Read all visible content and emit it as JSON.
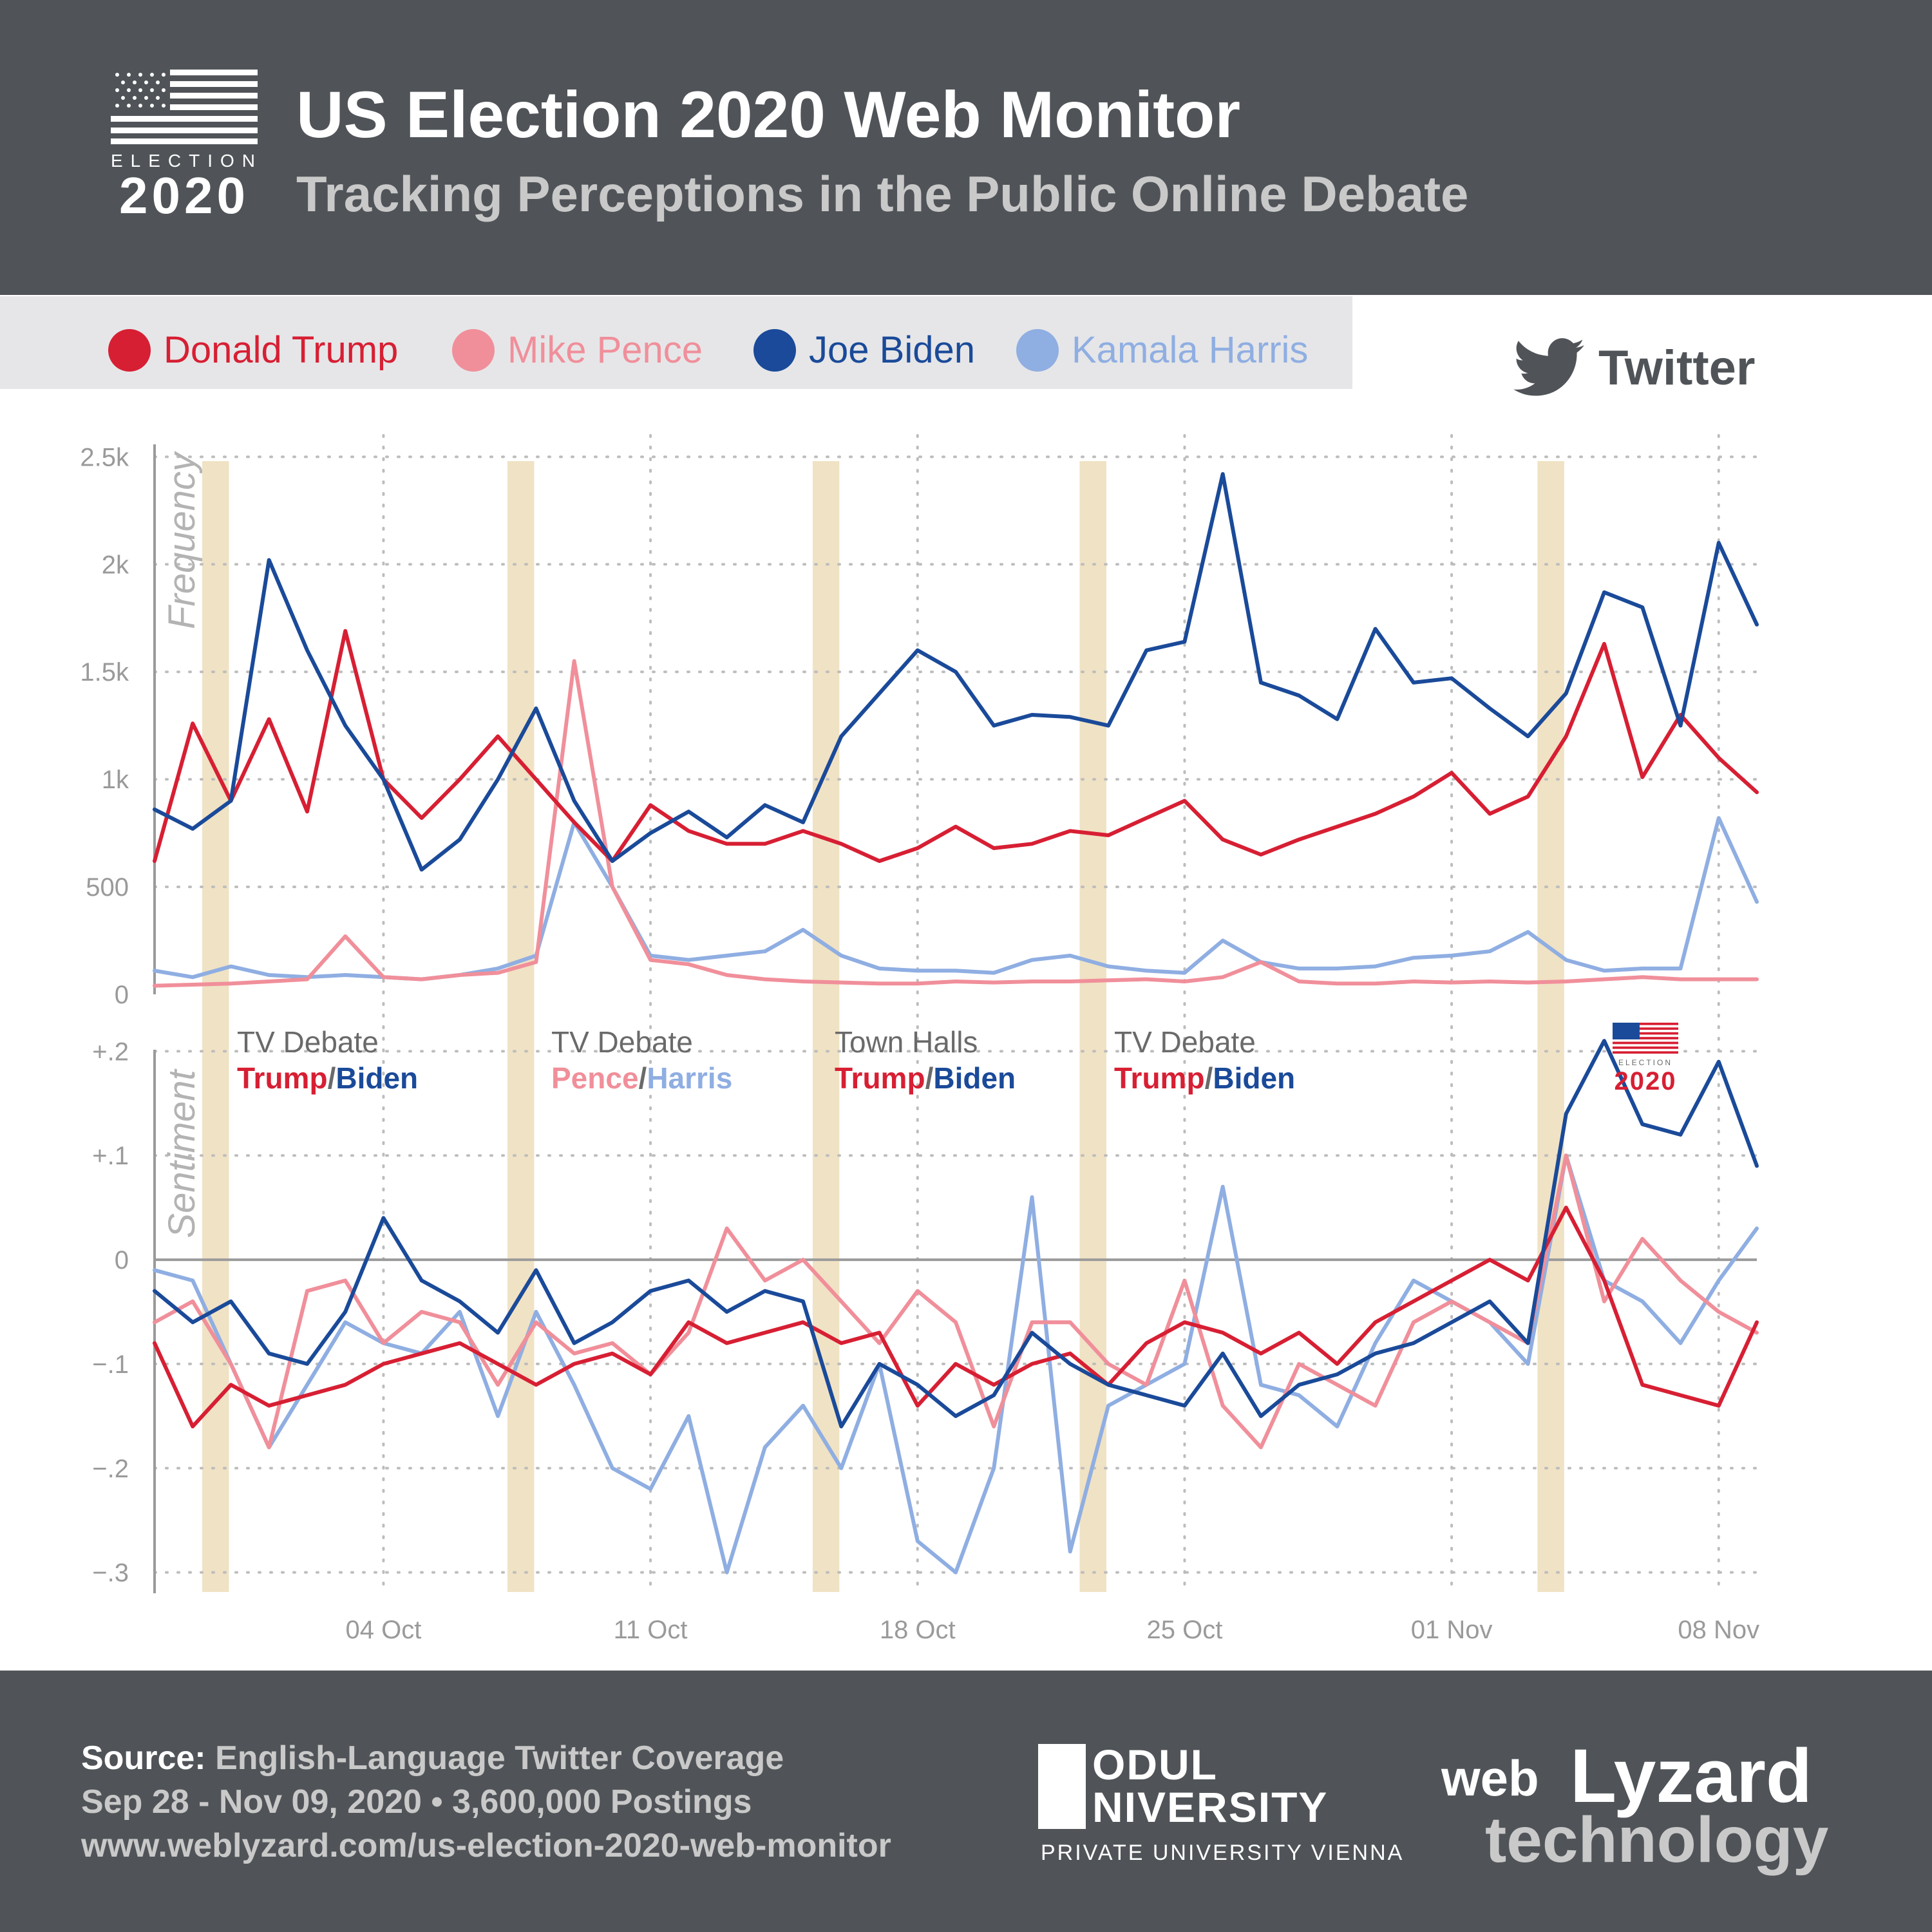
{
  "header": {
    "title": "US Election 2020 Web Monitor",
    "subtitle": "Tracking Perceptions in the Public Online Debate",
    "logo_word": "ELECTION",
    "logo_year": "2020"
  },
  "legend": [
    {
      "name": "Donald Trump",
      "color": "#d71f33"
    },
    {
      "name": "Mike Pence",
      "color": "#f08f9a"
    },
    {
      "name": "Joe Biden",
      "color": "#1a4a99"
    },
    {
      "name": "Kamala Harris",
      "color": "#8faee2"
    }
  ],
  "source_label": "Twitter",
  "footer": {
    "source_prefix": "Source:",
    "source_text": "English-Language Twitter Coverage",
    "line2": "Sep 28 - Nov 09, 2020 • 3,600,000 Postings",
    "line3": "www.weblyzard.com/us-election-2020-web-monitor",
    "modul_line1": "ODUL",
    "modul_line2": "NIVERSITY",
    "modul_sub": "PRIVATE UNIVERSITY VIENNA",
    "wl_web": "web",
    "wl_lyzard": "Lyzard",
    "wl_tech": "technology"
  },
  "chart_data": [
    {
      "type": "line",
      "ylabel": "Frequency",
      "ylim": [
        0,
        2600
      ],
      "yticks": [
        0,
        500,
        1000,
        1500,
        2000,
        2500
      ],
      "ytick_labels": [
        "0",
        "500",
        "1k",
        "1.5k",
        "2k",
        "2.5k"
      ],
      "x_dates": [
        "2020-09-28",
        "2020-09-29",
        "2020-09-30",
        "2020-10-01",
        "2020-10-02",
        "2020-10-03",
        "2020-10-04",
        "2020-10-05",
        "2020-10-06",
        "2020-10-07",
        "2020-10-08",
        "2020-10-09",
        "2020-10-10",
        "2020-10-11",
        "2020-10-12",
        "2020-10-13",
        "2020-10-14",
        "2020-10-15",
        "2020-10-16",
        "2020-10-17",
        "2020-10-18",
        "2020-10-19",
        "2020-10-20",
        "2020-10-21",
        "2020-10-22",
        "2020-10-23",
        "2020-10-24",
        "2020-10-25",
        "2020-10-26",
        "2020-10-27",
        "2020-10-28",
        "2020-10-29",
        "2020-10-30",
        "2020-10-31",
        "2020-11-01",
        "2020-11-02",
        "2020-11-03",
        "2020-11-04",
        "2020-11-05",
        "2020-11-06",
        "2020-11-07",
        "2020-11-08",
        "2020-11-09"
      ],
      "x_tick_labels": [
        "04 Oct",
        "11 Oct",
        "18 Oct",
        "25 Oct",
        "01 Nov",
        "08 Nov"
      ],
      "series": [
        {
          "name": "Donald Trump",
          "values": [
            620,
            1260,
            900,
            1280,
            850,
            1690,
            1000,
            820,
            1000,
            1200,
            1000,
            800,
            620,
            880,
            760,
            700,
            700,
            760,
            700,
            620,
            680,
            780,
            680,
            700,
            760,
            740,
            820,
            900,
            720,
            650,
            720,
            780,
            840,
            920,
            1030,
            840,
            920,
            1200,
            1630,
            1010,
            1300,
            1100,
            940
          ]
        },
        {
          "name": "Mike Pence",
          "values": [
            40,
            45,
            50,
            60,
            70,
            270,
            80,
            70,
            90,
            100,
            150,
            1550,
            500,
            160,
            140,
            90,
            70,
            60,
            55,
            50,
            50,
            60,
            55,
            60,
            60,
            65,
            70,
            60,
            80,
            150,
            60,
            50,
            50,
            60,
            55,
            60,
            55,
            60,
            70,
            80,
            70,
            70,
            70
          ]
        },
        {
          "name": "Joe Biden",
          "values": [
            860,
            770,
            900,
            2020,
            1600,
            1250,
            1000,
            580,
            720,
            1000,
            1330,
            900,
            620,
            750,
            850,
            730,
            880,
            800,
            1200,
            1400,
            1600,
            1500,
            1250,
            1300,
            1290,
            1250,
            1600,
            1640,
            2420,
            1450,
            1390,
            1280,
            1700,
            1450,
            1470,
            1330,
            1200,
            1400,
            1870,
            1800,
            1250,
            2100,
            1720
          ]
        },
        {
          "name": "Kamala Harris",
          "values": [
            110,
            80,
            130,
            90,
            80,
            90,
            80,
            70,
            90,
            120,
            180,
            800,
            500,
            180,
            160,
            180,
            200,
            300,
            180,
            120,
            110,
            110,
            100,
            160,
            180,
            130,
            110,
            100,
            250,
            150,
            120,
            120,
            130,
            170,
            180,
            200,
            290,
            160,
            110,
            120,
            120,
            820,
            430
          ]
        }
      ],
      "bands": [
        [
          "2020-09-29",
          "2020-09-30"
        ],
        [
          "2020-10-07",
          "2020-10-08"
        ],
        [
          "2020-10-15",
          "2020-10-16"
        ],
        [
          "2020-10-22",
          "2020-10-23"
        ],
        [
          "2020-11-03",
          "2020-11-04"
        ]
      ]
    },
    {
      "type": "line",
      "ylabel": "Sentiment",
      "ylim": [
        -0.32,
        0.22
      ],
      "yticks": [
        -0.3,
        -0.2,
        -0.1,
        0,
        0.1,
        0.2
      ],
      "ytick_labels": [
        "−.3",
        "−.2",
        "−.1",
        "0",
        "+.1",
        "+.2"
      ],
      "x_dates": [
        "2020-09-28",
        "2020-09-29",
        "2020-09-30",
        "2020-10-01",
        "2020-10-02",
        "2020-10-03",
        "2020-10-04",
        "2020-10-05",
        "2020-10-06",
        "2020-10-07",
        "2020-10-08",
        "2020-10-09",
        "2020-10-10",
        "2020-10-11",
        "2020-10-12",
        "2020-10-13",
        "2020-10-14",
        "2020-10-15",
        "2020-10-16",
        "2020-10-17",
        "2020-10-18",
        "2020-10-19",
        "2020-10-20",
        "2020-10-21",
        "2020-10-22",
        "2020-10-23",
        "2020-10-24",
        "2020-10-25",
        "2020-10-26",
        "2020-10-27",
        "2020-10-28",
        "2020-10-29",
        "2020-10-30",
        "2020-10-31",
        "2020-11-01",
        "2020-11-02",
        "2020-11-03",
        "2020-11-04",
        "2020-11-05",
        "2020-11-06",
        "2020-11-07",
        "2020-11-08",
        "2020-11-09"
      ],
      "series": [
        {
          "name": "Donald Trump",
          "values": [
            -0.08,
            -0.16,
            -0.12,
            -0.14,
            -0.13,
            -0.12,
            -0.1,
            -0.09,
            -0.08,
            -0.1,
            -0.12,
            -0.1,
            -0.09,
            -0.11,
            -0.06,
            -0.08,
            -0.07,
            -0.06,
            -0.08,
            -0.07,
            -0.14,
            -0.1,
            -0.12,
            -0.1,
            -0.09,
            -0.12,
            -0.08,
            -0.06,
            -0.07,
            -0.09,
            -0.07,
            -0.1,
            -0.06,
            -0.04,
            -0.02,
            0.0,
            -0.02,
            0.05,
            -0.02,
            -0.12,
            -0.13,
            -0.14,
            -0.06
          ]
        },
        {
          "name": "Mike Pence",
          "values": [
            -0.06,
            -0.04,
            -0.1,
            -0.18,
            -0.03,
            -0.02,
            -0.08,
            -0.05,
            -0.06,
            -0.12,
            -0.06,
            -0.09,
            -0.08,
            -0.11,
            -0.07,
            0.03,
            -0.02,
            0.0,
            -0.04,
            -0.08,
            -0.03,
            -0.06,
            -0.16,
            -0.06,
            -0.06,
            -0.1,
            -0.12,
            -0.02,
            -0.14,
            -0.18,
            -0.1,
            -0.12,
            -0.14,
            -0.06,
            -0.04,
            -0.06,
            -0.08,
            0.1,
            -0.04,
            0.02,
            -0.02,
            -0.05,
            -0.07
          ]
        },
        {
          "name": "Joe Biden",
          "values": [
            -0.03,
            -0.06,
            -0.04,
            -0.09,
            -0.1,
            -0.05,
            0.04,
            -0.02,
            -0.04,
            -0.07,
            -0.01,
            -0.08,
            -0.06,
            -0.03,
            -0.02,
            -0.05,
            -0.03,
            -0.04,
            -0.16,
            -0.1,
            -0.12,
            -0.15,
            -0.13,
            -0.07,
            -0.1,
            -0.12,
            -0.13,
            -0.14,
            -0.09,
            -0.15,
            -0.12,
            -0.11,
            -0.09,
            -0.08,
            -0.06,
            -0.04,
            -0.08,
            0.14,
            0.21,
            0.13,
            0.12,
            0.19,
            0.09
          ]
        },
        {
          "name": "Kamala Harris",
          "values": [
            -0.01,
            -0.02,
            -0.1,
            -0.18,
            -0.12,
            -0.06,
            -0.08,
            -0.09,
            -0.05,
            -0.15,
            -0.05,
            -0.12,
            -0.2,
            -0.22,
            -0.15,
            -0.3,
            -0.18,
            -0.14,
            -0.2,
            -0.1,
            -0.27,
            -0.3,
            -0.2,
            0.06,
            -0.28,
            -0.14,
            -0.12,
            -0.1,
            0.07,
            -0.12,
            -0.13,
            -0.16,
            -0.08,
            -0.02,
            -0.04,
            -0.06,
            -0.1,
            0.1,
            -0.02,
            -0.04,
            -0.08,
            -0.02,
            0.03
          ]
        }
      ],
      "annotations": [
        {
          "at": "2020-09-29",
          "title": "TV Debate",
          "a": "Trump",
          "b": "Biden",
          "a_color": "#d71f33",
          "b_color": "#1a4a99"
        },
        {
          "at": "2020-10-07",
          "title": "TV Debate",
          "a": "Pence",
          "b": "Harris",
          "a_color": "#f08f9a",
          "b_color": "#8faee2"
        },
        {
          "at": "2020-10-15",
          "title": "Town Halls",
          "a": "Trump",
          "b": "Biden",
          "a_color": "#d71f33",
          "b_color": "#1a4a99"
        },
        {
          "at": "2020-10-22",
          "title": "TV Debate",
          "a": "Trump",
          "b": "Biden",
          "a_color": "#d71f33",
          "b_color": "#1a4a99"
        }
      ],
      "inset_logo": {
        "word": "ELECTION",
        "year": "2020"
      }
    }
  ]
}
